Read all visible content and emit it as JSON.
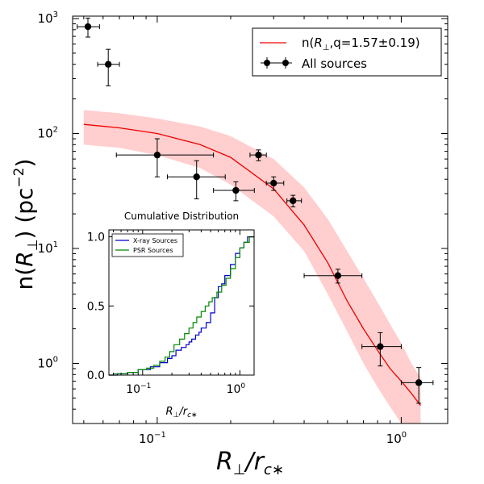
{
  "chart_data": [
    {
      "type": "scatter",
      "scale": {
        "x": "log",
        "y": "log"
      },
      "xlabel": {
        "main": "R",
        "sub": "⊥",
        "slash": "/r",
        "sub2": "c∗"
      },
      "ylabel": {
        "pre": "n(",
        "main": "R",
        "sub": "⊥",
        "mid": ") (pc",
        "sup": "−2",
        "post": ")"
      },
      "xlim": [
        0.045,
        1.55
      ],
      "ylim": [
        0.3,
        1050
      ],
      "xticks": [
        {
          "value": 0.1,
          "base": "10",
          "exp": "−1"
        },
        {
          "value": 1.0,
          "base": "10",
          "exp": "0"
        }
      ],
      "yticks": [
        {
          "value": 1,
          "base": "10",
          "exp": "0"
        },
        {
          "value": 10,
          "base": "10",
          "exp": "1"
        },
        {
          "value": 100,
          "base": "10",
          "exp": "2"
        },
        {
          "value": 1000,
          "base": "10",
          "exp": "3"
        }
      ],
      "series": [
        {
          "name": "All sources",
          "kind": "errorbar",
          "color": "#000000",
          "points": [
            {
              "x": 0.052,
              "y": 850,
              "xlo": 0.047,
              "xhi": 0.058,
              "ylo": 690,
              "yhi": 1010
            },
            {
              "x": 0.063,
              "y": 400,
              "xlo": 0.057,
              "xhi": 0.07,
              "ylo": 260,
              "yhi": 540
            },
            {
              "x": 0.1,
              "y": 65,
              "xlo": 0.068,
              "xhi": 0.17,
              "ylo": 42,
              "yhi": 90
            },
            {
              "x": 0.145,
              "y": 42,
              "xlo": 0.11,
              "xhi": 0.19,
              "ylo": 27,
              "yhi": 58
            },
            {
              "x": 0.21,
              "y": 32,
              "xlo": 0.17,
              "xhi": 0.25,
              "ylo": 26,
              "yhi": 38
            },
            {
              "x": 0.26,
              "y": 65,
              "xlo": 0.24,
              "xhi": 0.28,
              "ylo": 58,
              "yhi": 72
            },
            {
              "x": 0.3,
              "y": 37,
              "xlo": 0.28,
              "xhi": 0.33,
              "ylo": 32,
              "yhi": 42
            },
            {
              "x": 0.36,
              "y": 26,
              "xlo": 0.34,
              "xhi": 0.39,
              "ylo": 23,
              "yhi": 29
            },
            {
              "x": 0.55,
              "y": 5.8,
              "xlo": 0.4,
              "xhi": 0.69,
              "ylo": 5.0,
              "yhi": 6.6
            },
            {
              "x": 0.82,
              "y": 1.4,
              "xlo": 0.69,
              "xhi": 1.0,
              "ylo": 0.95,
              "yhi": 1.85
            },
            {
              "x": 1.18,
              "y": 0.68,
              "xlo": 1.0,
              "xhi": 1.35,
              "ylo": 0.45,
              "yhi": 0.92
            }
          ]
        },
        {
          "name": "n(R⊥,q=1.57±0.19)",
          "legend_pre": "n(",
          "legend_main": "R",
          "legend_sub": "⊥",
          "legend_post": ",q=1.57±0.19)",
          "kind": "line",
          "color": "#ee0000",
          "band_color": "#ffb3b3",
          "x": [
            0.05,
            0.07,
            0.1,
            0.15,
            0.2,
            0.3,
            0.4,
            0.5,
            0.6,
            0.7,
            0.8,
            0.9,
            1.0,
            1.1,
            1.2
          ],
          "y": [
            120,
            112,
            100,
            80,
            62,
            33,
            16,
            7.5,
            3.5,
            2.0,
            1.3,
            0.9,
            0.7,
            0.55,
            0.43
          ],
          "band_lo": [
            80,
            75,
            65,
            50,
            36,
            19,
            9.5,
            4.0,
            1.9,
            1.0,
            0.62,
            0.42,
            0.3,
            0.3,
            0.3
          ],
          "band_hi": [
            160,
            150,
            135,
            115,
            95,
            60,
            34,
            18,
            9.5,
            5.5,
            3.4,
            2.2,
            1.5,
            1.0,
            0.75
          ]
        }
      ],
      "legend_position": "upper right"
    },
    {
      "type": "line",
      "title": "Cumulative Distribution",
      "scale": {
        "x": "log",
        "y": "linear"
      },
      "xlabel": {
        "main": "R",
        "sub": "⊥",
        "slash": "/r",
        "sub2": "c∗"
      },
      "xlim": [
        0.045,
        1.4
      ],
      "ylim": [
        0,
        1.05
      ],
      "xticks": [
        {
          "value": 0.1,
          "base": "10",
          "exp": "−1"
        },
        {
          "value": 1.0,
          "base": "10",
          "exp": "0"
        }
      ],
      "yticks": [
        {
          "value": 0,
          "label": "0.0"
        },
        {
          "value": 0.5,
          "label": "0.5"
        },
        {
          "value": 1.0,
          "label": "1.0"
        }
      ],
      "series": [
        {
          "name": "X-ray Sources",
          "color": "#0000cc",
          "x": [
            0.045,
            0.055,
            0.07,
            0.09,
            0.12,
            0.15,
            0.18,
            0.2,
            0.22,
            0.25,
            0.28,
            0.3,
            0.32,
            0.35,
            0.38,
            0.4,
            0.45,
            0.5,
            0.55,
            0.6,
            0.65,
            0.7,
            0.8,
            0.9,
            1.0,
            1.1,
            1.2,
            1.4
          ],
          "y": [
            0.0,
            0.01,
            0.02,
            0.04,
            0.06,
            0.09,
            0.12,
            0.14,
            0.18,
            0.2,
            0.22,
            0.24,
            0.26,
            0.29,
            0.31,
            0.34,
            0.38,
            0.45,
            0.56,
            0.64,
            0.66,
            0.72,
            0.8,
            0.88,
            0.92,
            0.96,
            1.0,
            1.0
          ]
        },
        {
          "name": "PSR Sources",
          "color": "#008800",
          "x": [
            0.045,
            0.05,
            0.07,
            0.09,
            0.11,
            0.13,
            0.15,
            0.17,
            0.19,
            0.21,
            0.24,
            0.27,
            0.3,
            0.33,
            0.36,
            0.4,
            0.44,
            0.48,
            0.52,
            0.58,
            0.65,
            0.72,
            0.8,
            0.9,
            1.0,
            1.1,
            1.25,
            1.4
          ],
          "y": [
            0.0,
            0.01,
            0.02,
            0.04,
            0.05,
            0.07,
            0.1,
            0.13,
            0.17,
            0.22,
            0.26,
            0.3,
            0.34,
            0.38,
            0.42,
            0.46,
            0.5,
            0.53,
            0.56,
            0.6,
            0.65,
            0.7,
            0.77,
            0.85,
            0.92,
            0.96,
            1.0,
            1.0
          ]
        }
      ],
      "legend_position": "upper left"
    }
  ]
}
